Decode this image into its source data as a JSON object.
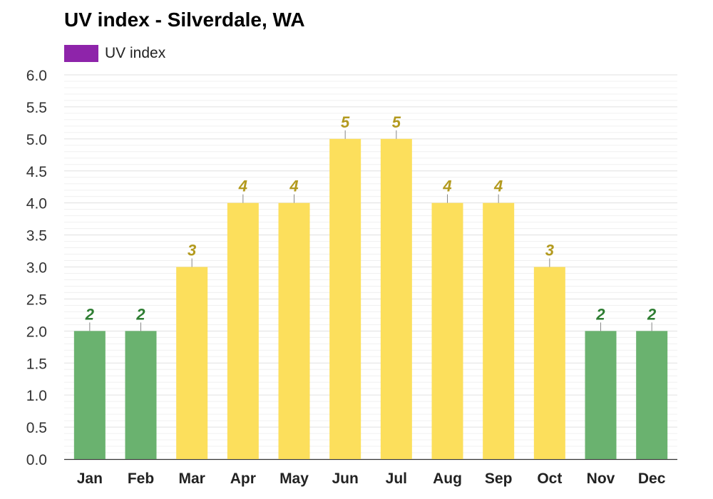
{
  "chart_data": {
    "type": "bar",
    "title": "UV index - Silverdale, WA",
    "xlabel": "",
    "ylabel": "",
    "categories": [
      "Jan",
      "Feb",
      "Mar",
      "Apr",
      "May",
      "Jun",
      "Jul",
      "Aug",
      "Sep",
      "Oct",
      "Nov",
      "Dec"
    ],
    "series": [
      {
        "name": "UV index",
        "values": [
          2,
          2,
          3,
          4,
          4,
          5,
          5,
          4,
          4,
          3,
          2,
          2
        ],
        "data_labels": [
          "2",
          "2",
          "3",
          "4",
          "4",
          "5",
          "5",
          "4",
          "4",
          "3",
          "2",
          "2"
        ]
      }
    ],
    "ylim": [
      0,
      6
    ],
    "ytick_labels": [
      "0.0",
      "0.5",
      "1.0",
      "1.5",
      "2.0",
      "2.5",
      "3.0",
      "3.5",
      "4.0",
      "4.5",
      "5.0",
      "5.5",
      "6.0"
    ],
    "grid": true,
    "legend_position": "top-left",
    "colors": {
      "legend_swatch": "#8e24aa",
      "low_bar": "#6ab26f",
      "low_label": "#2e7d32",
      "moderate_bar": "#fcdf5c",
      "moderate_label": "#b39a1f",
      "grid": "#e0e0e0",
      "axis": "#333333"
    }
  }
}
